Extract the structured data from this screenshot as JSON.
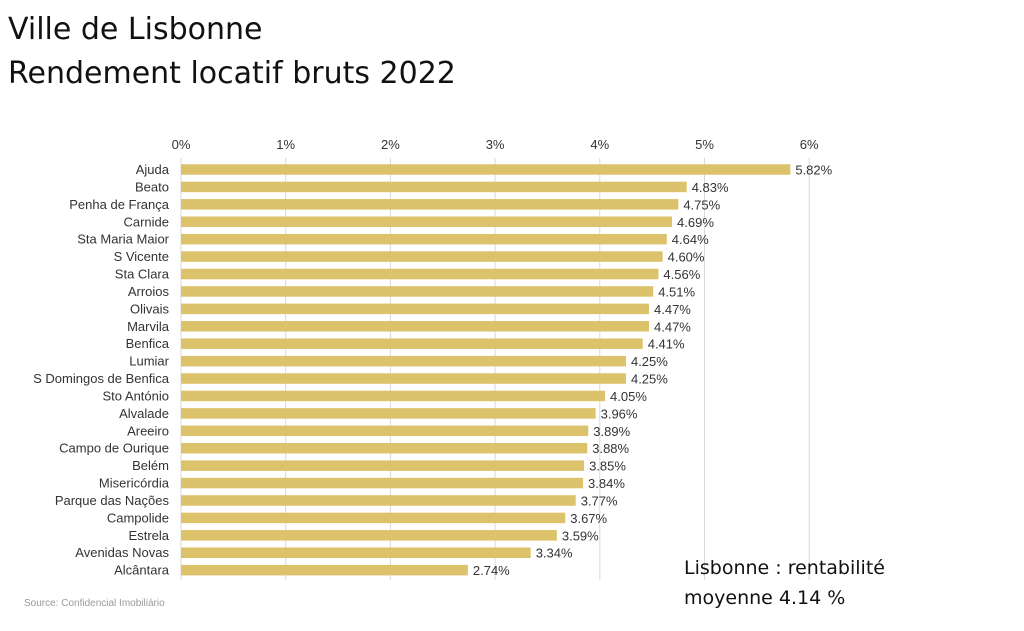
{
  "title_line1": "Ville de Lisbonne",
  "title_line2": "Rendement locatif bruts 2022",
  "annotation": {
    "line1": "Lisbonne : rentabilité",
    "line2": "moyenne 4.14 %"
  },
  "source": "Source: Confidencial Imobiliário",
  "colors": {
    "bar": "#DCC26A",
    "grid": "#D9D9D9",
    "text": "#333333"
  },
  "chart_data": {
    "type": "bar",
    "orientation": "horizontal",
    "title": "Rendement locatif bruts 2022",
    "xlim": [
      0,
      6
    ],
    "x_ticks": [
      "0%",
      "1%",
      "2%",
      "3%",
      "4%",
      "5%",
      "6%"
    ],
    "grid": true,
    "categories": [
      "Ajuda",
      "Beato",
      "Penha de França",
      "Carnide",
      "Sta Maria Maior",
      "S Vicente",
      "Sta Clara",
      "Arroios",
      "Olivais",
      "Marvila",
      "Benfica",
      "Lumiar",
      "S Domingos de Benfica",
      "Sto António",
      "Alvalade",
      "Areeiro",
      "Campo de Ourique",
      "Belém",
      "Misericórdia",
      "Parque das Nações",
      "Campolide",
      "Estrela",
      "Avenidas Novas",
      "Alcântara"
    ],
    "values": [
      5.82,
      4.83,
      4.75,
      4.69,
      4.64,
      4.6,
      4.56,
      4.51,
      4.47,
      4.47,
      4.41,
      4.25,
      4.25,
      4.05,
      3.96,
      3.89,
      3.88,
      3.85,
      3.84,
      3.77,
      3.67,
      3.59,
      3.34,
      2.74
    ],
    "value_labels": [
      "5.82%",
      "4.83%",
      "4.75%",
      "4.69%",
      "4.64%",
      "4.60%",
      "4.56%",
      "4.51%",
      "4.47%",
      "4.47%",
      "4.41%",
      "4.25%",
      "4.25%",
      "4.05%",
      "3.96%",
      "3.89%",
      "3.88%",
      "3.85%",
      "3.84%",
      "3.77%",
      "3.67%",
      "3.59%",
      "3.34%",
      "2.74%"
    ]
  }
}
